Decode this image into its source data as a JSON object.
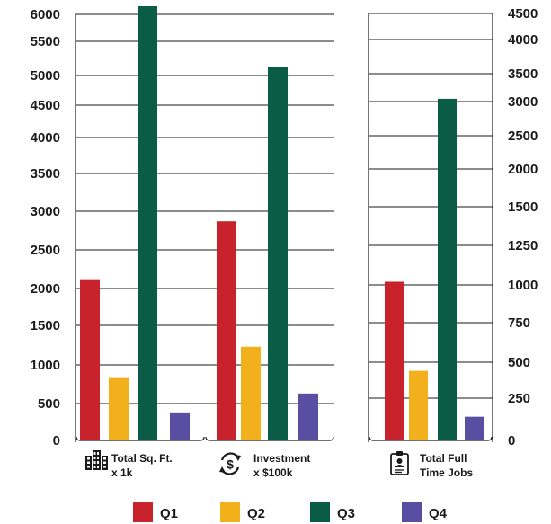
{
  "chart_data": {
    "type": "bar",
    "legend": {
      "placement": "bottom",
      "entries": [
        {
          "label": "Q1",
          "color": "#c8232c"
        },
        {
          "label": "Q2",
          "color": "#f2b11c"
        },
        {
          "label": "Q3",
          "color": "#0a5c46"
        },
        {
          "label": "Q4",
          "color": "#5a4ea3"
        }
      ]
    },
    "panels": [
      {
        "axis_side": "left",
        "ylim": [
          0,
          6000
        ],
        "yticks": [
          0,
          500,
          1000,
          1500,
          2000,
          2500,
          3000,
          3500,
          4000,
          4500,
          5000,
          5500,
          6000
        ],
        "grid": true,
        "categories": [
          {
            "label_lines": [
              "Total Sq. Ft.",
              "x  1k"
            ],
            "icon": "building-icon",
            "values": [
              2120,
              830,
              6150,
              380
            ]
          },
          {
            "label_lines": [
              "Investment",
              "x $100k"
            ],
            "icon": "dollar-cycle-icon",
            "values": [
              2870,
              1230,
              5120,
              630
            ]
          }
        ]
      },
      {
        "axis_side": "right",
        "ylim": [
          0,
          4500
        ],
        "yticks": [
          0,
          250,
          500,
          750,
          1000,
          1250,
          1500,
          2000,
          2500,
          3000,
          3500,
          4000,
          4500
        ],
        "grid": true,
        "categories": [
          {
            "label_lines": [
              "Total Full",
              "Time Jobs"
            ],
            "icon": "id-badge-icon",
            "values": [
              1020,
              440,
              3050,
              140
            ]
          }
        ]
      }
    ]
  }
}
